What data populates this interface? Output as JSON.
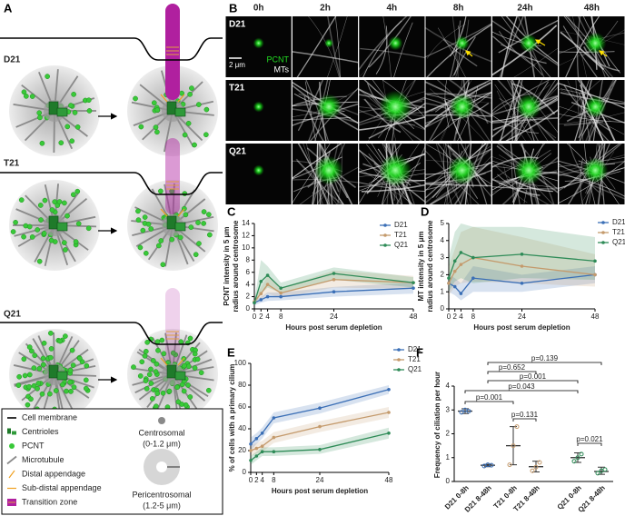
{
  "panel_labels": [
    "A",
    "B",
    "C",
    "D",
    "E",
    "F"
  ],
  "diagram": {
    "rows": [
      "D21",
      "T21",
      "Q21"
    ],
    "legend": [
      "Cell membrane",
      "Centrioles",
      "PCNT",
      "Microtubule",
      "Distal appendage",
      "Sub-distal appendage",
      "Transition zone"
    ],
    "regions": [
      {
        "name": "Centrosomal",
        "range": "(0-1.2 μm)"
      },
      {
        "name": "Pericentrosomal",
        "range": "(1.2-5 μm)"
      }
    ]
  },
  "microscopy": {
    "times": [
      "0h",
      "2h",
      "4h",
      "8h",
      "24h",
      "48h"
    ],
    "rows": [
      "D21",
      "T21",
      "Q21"
    ],
    "channels": [
      "PCNT",
      "MTs"
    ],
    "scale_bar": "2 μm"
  },
  "chart_data": [
    {
      "type": "line",
      "ylabel": [
        "PCNT intensity in 5 μm",
        "radius around centrosome"
      ],
      "xlabel": "Hours post serum depletion",
      "x": [
        0,
        2,
        4,
        8,
        24,
        48
      ],
      "xlim": [
        0,
        48
      ],
      "xticks": [
        0,
        2,
        4,
        8,
        24,
        48
      ],
      "ylim": [
        0,
        14
      ],
      "yticks": [
        0,
        2,
        4,
        6,
        8,
        10,
        12,
        14
      ],
      "series": [
        {
          "name": "D21",
          "color": "#3b6fb6",
          "values": [
            1.0,
            1.5,
            2.0,
            2.0,
            2.8,
            3.4
          ],
          "lower": [
            0.6,
            1.0,
            1.3,
            1.4,
            2.0,
            2.5
          ],
          "upper": [
            1.4,
            2.0,
            2.7,
            2.7,
            3.6,
            4.3
          ]
        },
        {
          "name": "T21",
          "color": "#c49a6c",
          "values": [
            1.2,
            2.5,
            4.0,
            2.6,
            4.8,
            4.3
          ],
          "lower": [
            0.8,
            1.5,
            2.5,
            1.8,
            3.5,
            3.3
          ],
          "upper": [
            1.6,
            3.5,
            5.5,
            3.4,
            6.3,
            5.4
          ]
        },
        {
          "name": "Q21",
          "color": "#2e8b57",
          "values": [
            1.0,
            4.5,
            5.5,
            3.4,
            5.8,
            4.3
          ],
          "lower": [
            0.6,
            2.5,
            3.5,
            2.6,
            4.8,
            3.5
          ],
          "upper": [
            1.4,
            8.0,
            7.0,
            4.3,
            6.8,
            5.2
          ]
        }
      ]
    },
    {
      "type": "line",
      "ylabel": [
        "MT intensity in 5 μm",
        "radius around centrosome"
      ],
      "xlabel": "Hours post serum depletion",
      "x": [
        0,
        2,
        4,
        8,
        24,
        48
      ],
      "xlim": [
        0,
        48
      ],
      "xticks": [
        0,
        2,
        4,
        8,
        24,
        48
      ],
      "ylim": [
        0,
        5
      ],
      "yticks": [
        0,
        1,
        2,
        3,
        4,
        5
      ],
      "series": [
        {
          "name": "D21",
          "color": "#3b6fb6",
          "values": [
            1.5,
            1.3,
            0.9,
            1.8,
            1.5,
            2.0
          ],
          "lower": [
            1.0,
            0.8,
            0.5,
            1.0,
            1.0,
            1.5
          ],
          "upper": [
            2.0,
            1.8,
            1.5,
            2.5,
            2.0,
            2.5
          ]
        },
        {
          "name": "T21",
          "color": "#c49a6c",
          "values": [
            1.5,
            2.2,
            2.6,
            3.0,
            2.5,
            2.0
          ],
          "lower": [
            0.8,
            1.3,
            1.5,
            1.6,
            1.5,
            1.3
          ],
          "upper": [
            2.5,
            3.5,
            4.5,
            4.8,
            4.2,
            3.2
          ]
        },
        {
          "name": "Q21",
          "color": "#2e8b57",
          "values": [
            1.8,
            2.8,
            3.3,
            3.0,
            3.2,
            2.8
          ],
          "lower": [
            1.0,
            1.6,
            1.8,
            1.5,
            1.8,
            1.7
          ],
          "upper": [
            3.0,
            4.5,
            5.0,
            4.8,
            4.8,
            4.2
          ]
        }
      ]
    },
    {
      "type": "line",
      "ylabel": [
        "% of cells with a primary cilium"
      ],
      "xlabel": "Hours post serum depletion",
      "x": [
        0,
        2,
        4,
        8,
        24,
        48
      ],
      "xlim": [
        0,
        48
      ],
      "xticks": [
        0,
        2,
        4,
        8,
        24,
        48
      ],
      "ylim": [
        0,
        100
      ],
      "yticks": [
        0,
        20,
        40,
        60,
        80,
        100
      ],
      "series": [
        {
          "name": "D21",
          "color": "#3b6fb6",
          "values": [
            26,
            31,
            36,
            50,
            59,
            76
          ],
          "lower": [
            20,
            26,
            31,
            45,
            54,
            72
          ],
          "upper": [
            32,
            36,
            41,
            55,
            64,
            80
          ]
        },
        {
          "name": "T21",
          "color": "#c49a6c",
          "values": [
            20,
            22,
            24,
            32,
            42,
            55
          ],
          "lower": [
            15,
            17,
            19,
            27,
            37,
            50
          ],
          "upper": [
            25,
            27,
            29,
            37,
            47,
            60
          ]
        },
        {
          "name": "Q21",
          "color": "#2e8b57",
          "values": [
            11,
            15,
            19,
            19,
            21,
            36
          ],
          "lower": [
            7,
            11,
            15,
            15,
            17,
            31
          ],
          "upper": [
            15,
            19,
            23,
            23,
            25,
            41
          ]
        }
      ]
    },
    {
      "type": "dot",
      "ylabel": [
        "Frequency of ciliation per hour"
      ],
      "categories": [
        "D21 0-8h",
        "D21 8-48h",
        "T21 0-8h",
        "T21 8-48h",
        "Q21 0-8h",
        "Q21 8-48h"
      ],
      "colors": [
        "#3b6fb6",
        "#3b6fb6",
        "#c49a6c",
        "#c49a6c",
        "#2e8b57",
        "#2e8b57"
      ],
      "values": [
        2.95,
        0.68,
        1.5,
        0.62,
        1.0,
        0.42
      ],
      "lower": [
        2.85,
        0.62,
        0.7,
        0.4,
        0.8,
        0.3
      ],
      "upper": [
        3.05,
        0.72,
        2.3,
        0.85,
        1.2,
        0.6
      ],
      "points": [
        [
          2.9,
          3.0,
          2.95
        ],
        [
          0.65,
          0.7,
          0.68
        ],
        [
          0.7,
          1.5,
          2.3
        ],
        [
          0.45,
          0.6,
          0.8
        ],
        [
          0.85,
          1.0,
          1.15
        ],
        [
          0.35,
          0.45,
          0.5
        ]
      ],
      "ylim": [
        0,
        4
      ],
      "yticks": [
        0,
        1,
        2,
        3,
        4
      ],
      "comparisons": [
        {
          "label": "p=0.139",
          "pair": [
            "D21 8-48h",
            "Q21 8-48h"
          ]
        },
        {
          "label": "p=0.652",
          "pair": [
            "D21 8-48h",
            "T21 8-48h"
          ]
        },
        {
          "label": "p=0.001",
          "pair": [
            "D21 8-48h",
            "Q21 0-8h"
          ]
        },
        {
          "label": "p=0.043",
          "pair": [
            "D21 0-8h",
            "Q21 0-8h"
          ]
        },
        {
          "label": "p=0.001",
          "pair": [
            "D21 0-8h",
            "T21 0-8h"
          ]
        },
        {
          "label": "p=0.131",
          "pair": [
            "T21 0-8h",
            "T21 8-48h"
          ]
        },
        {
          "label": "p=0.021",
          "pair": [
            "Q21 0-8h",
            "Q21 8-48h"
          ]
        }
      ]
    }
  ]
}
